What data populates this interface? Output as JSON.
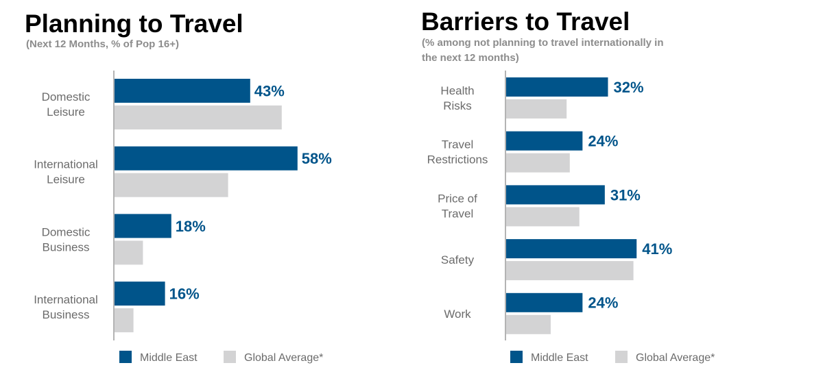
{
  "colors": {
    "primary": "#00548a",
    "secondary": "#d3d3d4",
    "axis": "#9a9a9a"
  },
  "chart_data": [
    {
      "type": "bar",
      "orientation": "horizontal",
      "title": "Planning to Travel",
      "subtitle": "(Next 12 Months, % of Pop 16+)",
      "categories": [
        [
          "Domestic",
          "Leisure"
        ],
        [
          "International",
          "Leisure"
        ],
        [
          "Domestic",
          "Business"
        ],
        [
          "International",
          "Business"
        ]
      ],
      "series": [
        {
          "name": "Middle East",
          "values": [
            43,
            58,
            18,
            16
          ],
          "labels": [
            "43%",
            "58%",
            "18%",
            "16%"
          ]
        },
        {
          "name": "Global Average*",
          "values": [
            53,
            36,
            9,
            6
          ]
        }
      ],
      "xlim": [
        0,
        100
      ],
      "grid": false,
      "legend": "bottom"
    },
    {
      "type": "bar",
      "orientation": "horizontal",
      "title": "Barriers to Travel",
      "subtitle": [
        "(% among not planning to travel internationally in",
        "the next 12 months)"
      ],
      "categories": [
        [
          "Health",
          "Risks"
        ],
        [
          "Travel",
          "Restrictions"
        ],
        [
          "Price of",
          "Travel"
        ],
        [
          "Safety"
        ],
        [
          "Work"
        ]
      ],
      "series": [
        {
          "name": "Middle East",
          "values": [
            32,
            24,
            31,
            41,
            24
          ],
          "labels": [
            "32%",
            "24%",
            "31%",
            "41%",
            "24%"
          ]
        },
        {
          "name": "Global Average*",
          "values": [
            19,
            20,
            23,
            40,
            14
          ]
        }
      ],
      "xlim": [
        0,
        100
      ],
      "grid": false,
      "legend": "bottom"
    }
  ]
}
